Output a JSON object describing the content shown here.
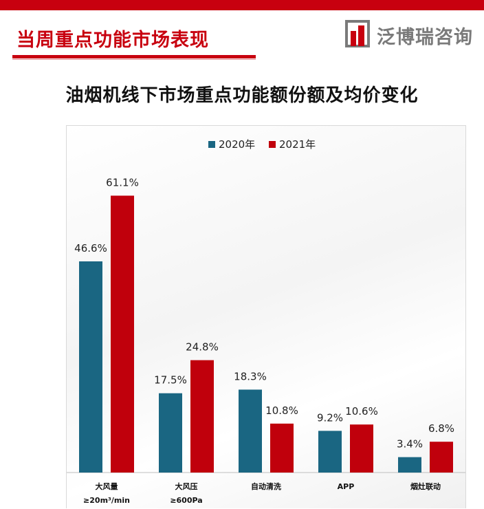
{
  "header": {
    "section_title": "当周重点功能市场表现",
    "brand_name": "泛博瑞咨询"
  },
  "colors": {
    "accent": "#c8000f",
    "series_2020": "#1a6682",
    "series_2021": "#c0000c",
    "logo_gray": "#7a7a7a"
  },
  "chart_data": {
    "type": "bar",
    "title": "油烟机线下市场重点功能额份额及均价变化",
    "categories": [
      [
        "大风量",
        "≥20m³/min"
      ],
      [
        "大风压",
        "≥600Pa"
      ],
      [
        "自动清洗"
      ],
      [
        "APP"
      ],
      [
        "烟灶联动"
      ]
    ],
    "series": [
      {
        "name": "2020年",
        "values": [
          46.6,
          17.5,
          18.3,
          9.2,
          3.4
        ],
        "labels": [
          "46.6%",
          "17.5%",
          "18.3%",
          "9.2%",
          "3.4%"
        ]
      },
      {
        "name": "2021年",
        "values": [
          61.1,
          24.8,
          10.8,
          10.6,
          6.8
        ],
        "labels": [
          "61.1%",
          "24.8%",
          "10.8%",
          "10.6%",
          "6.8%"
        ]
      }
    ],
    "ylim": [
      0,
      68
    ],
    "grid": false,
    "legend": "top-center",
    "xlabel": "",
    "ylabel": ""
  }
}
